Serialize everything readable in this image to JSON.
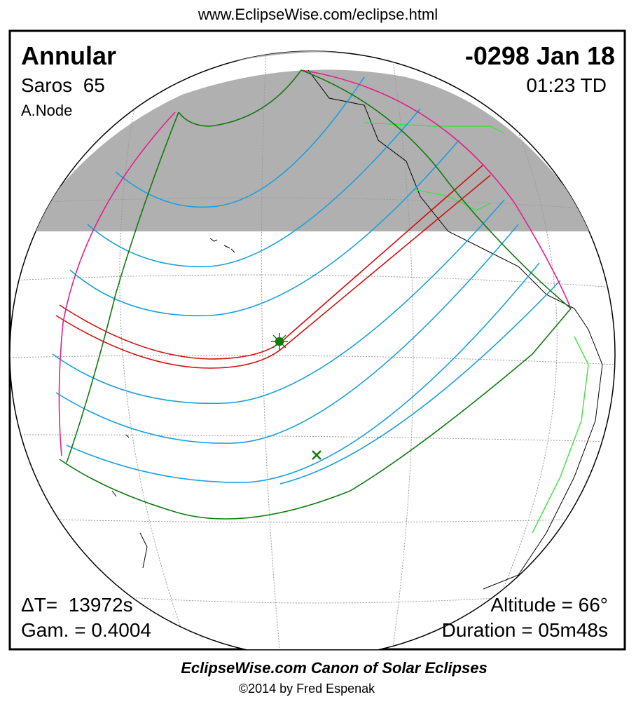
{
  "header": {
    "url": "www.EclipseWise.com/eclipse.html"
  },
  "panel": {
    "eclipse_type": "Annular",
    "date": "-0298 Jan 18",
    "saros": "Saros  65",
    "time": "01:23 TD",
    "node": "A.Node",
    "delta_t": "ΔT=  13972s",
    "gamma": "Gam. = 0.4004",
    "altitude": "Altitude = 66°",
    "duration": "Duration = 05m48s"
  },
  "footer": {
    "title": "EclipseWise.com Canon of Solar Eclipses",
    "credit": "©2014 by Fred Espenak"
  }
}
